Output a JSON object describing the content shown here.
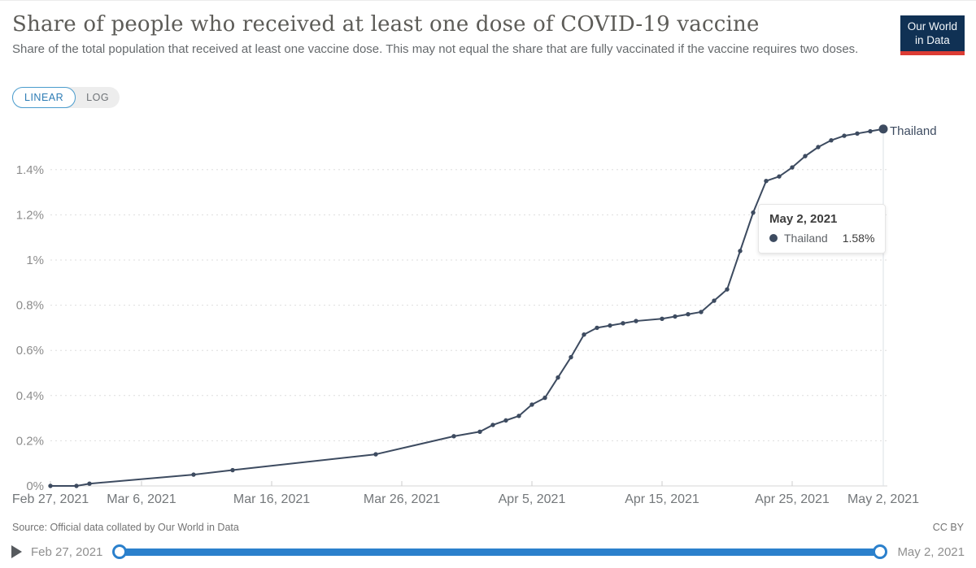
{
  "header": {
    "title": "Share of people who received at least one dose of COVID-19 vaccine",
    "subtitle": "Share of the total population that received at least one vaccine dose. This may not equal the share that are fully vaccinated if the vaccine requires two doses.",
    "logo_line1": "Our World",
    "logo_line2": "in Data"
  },
  "toggle": {
    "linear_label": "LINEAR",
    "log_label": "LOG",
    "selected": "LINEAR"
  },
  "tooltip": {
    "date": "May 2, 2021",
    "series": "Thailand",
    "value": "1.58%"
  },
  "footer": {
    "source": "Source: Official data collated by Our World in Data",
    "license": "CC BY"
  },
  "timeline": {
    "start_label": "Feb 27, 2021",
    "end_label": "May 2, 2021"
  },
  "colors": {
    "line": "#3d4b60",
    "slider_blue": "#2b80cc",
    "toggle_active_blue": "#2d7cb5",
    "logo_bg": "#103154",
    "logo_bar_red": "#dc3c34",
    "gridline": "#dedede",
    "axis_text": "#8c8c8c"
  },
  "chart_data": {
    "type": "line",
    "title": "Share of people who received at least one dose of COVID-19 vaccine",
    "xlabel": "",
    "ylabel": "",
    "ylim": [
      0,
      1.6
    ],
    "grid": "horizontal-dashed",
    "legend_position": "end-of-line-label",
    "y_ticks": [
      0,
      0.2,
      0.4,
      0.6,
      0.8,
      1.0,
      1.2,
      1.4
    ],
    "y_tick_labels": [
      "0%",
      "0.2%",
      "0.4%",
      "0.6%",
      "0.8%",
      "1%",
      "1.2%",
      "1.4%"
    ],
    "x_range_days": [
      0,
      64
    ],
    "x_ticks": [
      {
        "day": 0,
        "label": "Feb 27, 2021"
      },
      {
        "day": 7,
        "label": "Mar 6, 2021"
      },
      {
        "day": 17,
        "label": "Mar 16, 2021"
      },
      {
        "day": 27,
        "label": "Mar 26, 2021"
      },
      {
        "day": 37,
        "label": "Apr 5, 2021"
      },
      {
        "day": 47,
        "label": "Apr 15, 2021"
      },
      {
        "day": 57,
        "label": "Apr 25, 2021"
      },
      {
        "day": 64,
        "label": "May 2, 2021"
      }
    ],
    "highlight": {
      "day": 64,
      "value": 1.58,
      "date": "May 2, 2021",
      "value_label": "1.58%"
    },
    "series": [
      {
        "name": "Thailand",
        "color": "#3d4b60",
        "points": [
          {
            "date": "Feb 27, 2021",
            "day": 0,
            "value": 0.0
          },
          {
            "date": "Mar 1, 2021",
            "day": 2,
            "value": 0.0
          },
          {
            "date": "Mar 2, 2021",
            "day": 3,
            "value": 0.01
          },
          {
            "date": "Mar 10, 2021",
            "day": 11,
            "value": 0.05
          },
          {
            "date": "Mar 13, 2021",
            "day": 14,
            "value": 0.07
          },
          {
            "date": "Mar 24, 2021",
            "day": 25,
            "value": 0.14
          },
          {
            "date": "Mar 30, 2021",
            "day": 31,
            "value": 0.22
          },
          {
            "date": "Apr 1, 2021",
            "day": 33,
            "value": 0.24
          },
          {
            "date": "Apr 2, 2021",
            "day": 34,
            "value": 0.27
          },
          {
            "date": "Apr 3, 2021",
            "day": 35,
            "value": 0.29
          },
          {
            "date": "Apr 4, 2021",
            "day": 36,
            "value": 0.31
          },
          {
            "date": "Apr 5, 2021",
            "day": 37,
            "value": 0.36
          },
          {
            "date": "Apr 6, 2021",
            "day": 38,
            "value": 0.39
          },
          {
            "date": "Apr 7, 2021",
            "day": 39,
            "value": 0.48
          },
          {
            "date": "Apr 8, 2021",
            "day": 40,
            "value": 0.57
          },
          {
            "date": "Apr 9, 2021",
            "day": 41,
            "value": 0.67
          },
          {
            "date": "Apr 10, 2021",
            "day": 42,
            "value": 0.7
          },
          {
            "date": "Apr 11, 2021",
            "day": 43,
            "value": 0.71
          },
          {
            "date": "Apr 12, 2021",
            "day": 44,
            "value": 0.72
          },
          {
            "date": "Apr 13, 2021",
            "day": 45,
            "value": 0.73
          },
          {
            "date": "Apr 15, 2021",
            "day": 47,
            "value": 0.74
          },
          {
            "date": "Apr 16, 2021",
            "day": 48,
            "value": 0.75
          },
          {
            "date": "Apr 17, 2021",
            "day": 49,
            "value": 0.76
          },
          {
            "date": "Apr 18, 2021",
            "day": 50,
            "value": 0.77
          },
          {
            "date": "Apr 19, 2021",
            "day": 51,
            "value": 0.82
          },
          {
            "date": "Apr 20, 2021",
            "day": 52,
            "value": 0.87
          },
          {
            "date": "Apr 21, 2021",
            "day": 53,
            "value": 1.04
          },
          {
            "date": "Apr 22, 2021",
            "day": 54,
            "value": 1.21
          },
          {
            "date": "Apr 23, 2021",
            "day": 55,
            "value": 1.35
          },
          {
            "date": "Apr 24, 2021",
            "day": 56,
            "value": 1.37
          },
          {
            "date": "Apr 25, 2021",
            "day": 57,
            "value": 1.41
          },
          {
            "date": "Apr 26, 2021",
            "day": 58,
            "value": 1.46
          },
          {
            "date": "Apr 27, 2021",
            "day": 59,
            "value": 1.5
          },
          {
            "date": "Apr 28, 2021",
            "day": 60,
            "value": 1.53
          },
          {
            "date": "Apr 29, 2021",
            "day": 61,
            "value": 1.55
          },
          {
            "date": "Apr 30, 2021",
            "day": 62,
            "value": 1.56
          },
          {
            "date": "May 1, 2021",
            "day": 63,
            "value": 1.57
          },
          {
            "date": "May 2, 2021",
            "day": 64,
            "value": 1.58
          }
        ]
      }
    ]
  }
}
